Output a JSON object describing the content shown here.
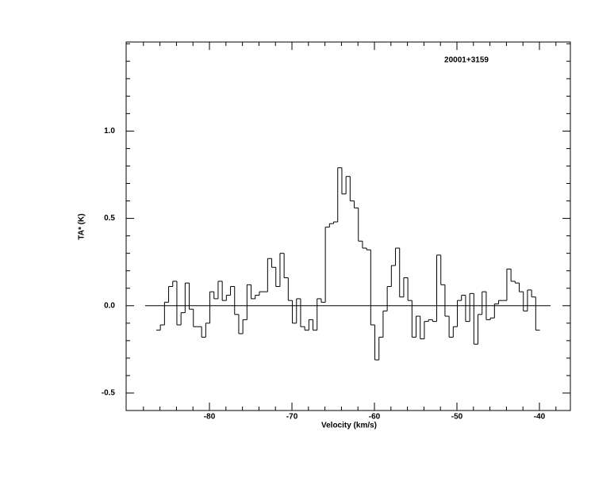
{
  "chart_data": {
    "type": "step",
    "annotation": "20001+3159",
    "x_label": "Velocity (km/s)",
    "y_label": "TA* (K)",
    "xlim": [
      -90.1,
      -36.25
    ],
    "ylim": [
      -0.6,
      1.51
    ],
    "xticks": [
      -80,
      -70,
      -60,
      -50,
      -40
    ],
    "yticks": [
      -0.5,
      {
        "value": 0,
        "label": "0.0"
      },
      0.5,
      {
        "value": 1,
        "label": "1.0"
      }
    ],
    "xticks_minor": [
      -88,
      -86,
      -84,
      -82,
      -78,
      -76,
      -74,
      -72,
      -68,
      -66,
      -64,
      -62,
      -58,
      -56,
      -54,
      -52,
      -48,
      -46,
      -44,
      -42,
      -38
    ],
    "yticks_minor": [
      -0.4,
      -0.3,
      -0.2,
      -0.1,
      0.1,
      0.2,
      0.3,
      0.4,
      0.6,
      0.7,
      0.8,
      0.9,
      1.1,
      1.2,
      1.3,
      1.4,
      1.5
    ],
    "baseline": 0,
    "color": "#000000",
    "x": [
      -86.2,
      -85.7,
      -85.2,
      -84.7,
      -84.2,
      -83.7,
      -83.2,
      -82.7,
      -82.2,
      -81.7,
      -81.2,
      -80.7,
      -80.2,
      -79.7,
      -79.2,
      -78.7,
      -78.2,
      -77.7,
      -77.2,
      -76.7,
      -76.2,
      -75.7,
      -75.2,
      -74.7,
      -74.2,
      -73.7,
      -73.2,
      -72.7,
      -72.2,
      -71.7,
      -71.2,
      -70.7,
      -70.2,
      -69.7,
      -69.2,
      -68.7,
      -68.2,
      -67.7,
      -67.2,
      -66.7,
      -66.2,
      -65.7,
      -65.2,
      -64.7,
      -64.2,
      -63.7,
      -63.2,
      -62.7,
      -62.2,
      -61.7,
      -61.2,
      -60.7,
      -60.2,
      -59.7,
      -59.2,
      -58.7,
      -58.2,
      -57.7,
      -57.2,
      -56.7,
      -56.2,
      -55.7,
      -55.2,
      -54.7,
      -54.2,
      -53.7,
      -53.2,
      -52.7,
      -52.2,
      -51.7,
      -51.2,
      -50.7,
      -50.2,
      -49.7,
      -49.2,
      -48.7,
      -48.2,
      -47.7,
      -47.2,
      -46.7,
      -46.2,
      -45.7,
      -45.2,
      -44.7,
      -44.2,
      -43.7,
      -43.2,
      -42.7,
      -42.2,
      -41.7,
      -41.2,
      -40.7,
      -40.2
    ],
    "values": [
      -0.14,
      -0.11,
      0.02,
      0.11,
      0.14,
      -0.11,
      -0.04,
      0.13,
      -0.02,
      -0.12,
      -0.12,
      -0.18,
      -0.1,
      0.08,
      0.04,
      0.14,
      0.03,
      0.06,
      0.11,
      -0.05,
      -0.16,
      -0.08,
      0.12,
      0.04,
      0.06,
      0.08,
      0.08,
      0.27,
      0.22,
      0.11,
      0.3,
      0.16,
      0.03,
      -0.1,
      0.04,
      -0.12,
      -0.14,
      -0.08,
      -0.14,
      0.04,
      0.02,
      0.45,
      0.47,
      0.48,
      0.79,
      0.64,
      0.74,
      0.6,
      0.56,
      0.37,
      0.33,
      0.32,
      -0.11,
      -0.31,
      -0.18,
      -0.03,
      0.11,
      0.23,
      0.33,
      0.05,
      0.16,
      0.03,
      -0.18,
      -0.06,
      -0.19,
      -0.09,
      -0.08,
      -0.09,
      0.29,
      0.12,
      -0.06,
      -0.18,
      -0.12,
      0.03,
      0.06,
      -0.09,
      0.07,
      -0.22,
      -0.05,
      0.08,
      -0.08,
      -0.07,
      0.01,
      0.03,
      0.03,
      0.21,
      0.14,
      0.13,
      0.08,
      -0.03,
      0.09,
      0.05,
      -0.14
    ]
  }
}
